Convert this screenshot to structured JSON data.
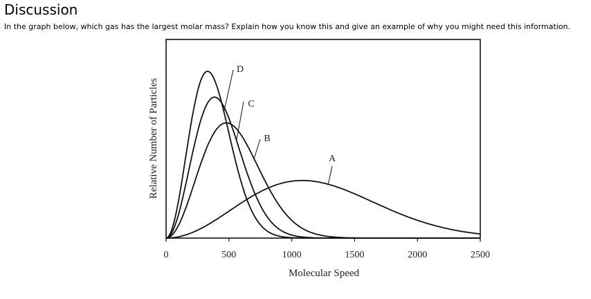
{
  "heading": "Discussion",
  "question": "In the graph below, which gas has the largest molar mass? Explain how you know this and give an example of why you might need this information.",
  "chart_data": {
    "type": "line",
    "title": "",
    "xlabel": "Molecular Speed",
    "ylabel": "Relative Number of Particles",
    "xlim": [
      0,
      2500
    ],
    "ylim": [
      0,
      1
    ],
    "xticks": [
      "0",
      "500",
      "1000",
      "1500",
      "2000",
      "2500"
    ],
    "yticks": [],
    "grid": false,
    "legend": "none (curves labeled directly)",
    "series": [
      {
        "name": "A",
        "peak_speed": 1085,
        "peak_relative_height": 0.29
      },
      {
        "name": "B",
        "peak_speed": 480,
        "peak_relative_height": 0.58
      },
      {
        "name": "C",
        "peak_speed": 385,
        "peak_relative_height": 0.71
      },
      {
        "name": "D",
        "peak_speed": 330,
        "peak_relative_height": 0.84
      }
    ]
  }
}
